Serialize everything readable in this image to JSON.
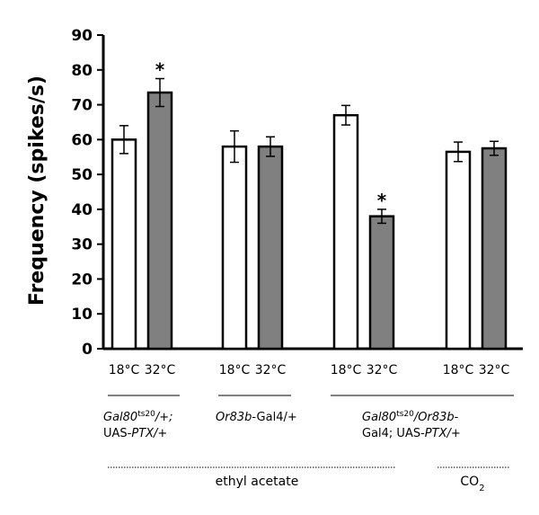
{
  "chart_data": {
    "type": "bar",
    "ylabel": "Frequency (spikes/s)",
    "ylim": [
      0,
      90
    ],
    "yticks": [
      0,
      10,
      20,
      30,
      40,
      50,
      60,
      70,
      80,
      90
    ],
    "groups": [
      {
        "genotype_lines": [
          [
            {
              "t": "Gal80",
              "i": true
            },
            {
              "t": "ts20",
              "sup": true,
              "i": false
            },
            {
              "t": "/+;",
              "i": true
            }
          ],
          [
            {
              "t": "UAS-",
              "i": false
            },
            {
              "t": "PTX",
              "i": true
            },
            {
              "t": "/+",
              "i": true
            }
          ]
        ],
        "bars": [
          {
            "temp": "18°C",
            "value": 60,
            "err": 4,
            "significant": false
          },
          {
            "temp": "32°C",
            "value": 73.5,
            "err": 4,
            "significant": true
          }
        ]
      },
      {
        "genotype_lines": [
          [
            {
              "t": "Or83b",
              "i": true
            },
            {
              "t": "-Gal4/+",
              "i": false
            }
          ]
        ],
        "bars": [
          {
            "temp": "18°C",
            "value": 58,
            "err": 4.5,
            "significant": false
          },
          {
            "temp": "32°C",
            "value": 58,
            "err": 2.8,
            "significant": false
          }
        ]
      },
      {
        "genotype_lines": [
          [
            {
              "t": "Gal80",
              "i": true
            },
            {
              "t": "ts20",
              "sup": true,
              "i": false
            },
            {
              "t": "/Or83b",
              "i": true
            },
            {
              "t": "-",
              "i": false
            }
          ],
          [
            {
              "t": "Gal4; UAS-",
              "i": false
            },
            {
              "t": "PTX",
              "i": true
            },
            {
              "t": "/+",
              "i": true
            }
          ]
        ],
        "bars": [
          {
            "temp": "18°C",
            "value": 67,
            "err": 2.8,
            "significant": false
          },
          {
            "temp": "32°C",
            "value": 38,
            "err": 2,
            "significant": true
          }
        ]
      },
      {
        "genotype_lines": [],
        "bars": [
          {
            "temp": "18°C",
            "value": 56.5,
            "err": 2.8,
            "significant": false
          },
          {
            "temp": "32°C",
            "value": 57.5,
            "err": 2,
            "significant": false
          }
        ]
      }
    ],
    "bar_colors": {
      "18°C": "#ffffff",
      "32°C": "#808080"
    },
    "significance_marker": "*",
    "stimuli": [
      {
        "label": "ethyl acetate",
        "groups": [
          0,
          1,
          2
        ]
      },
      {
        "label": "CO",
        "sub": "2",
        "groups": [
          3
        ]
      }
    ]
  }
}
